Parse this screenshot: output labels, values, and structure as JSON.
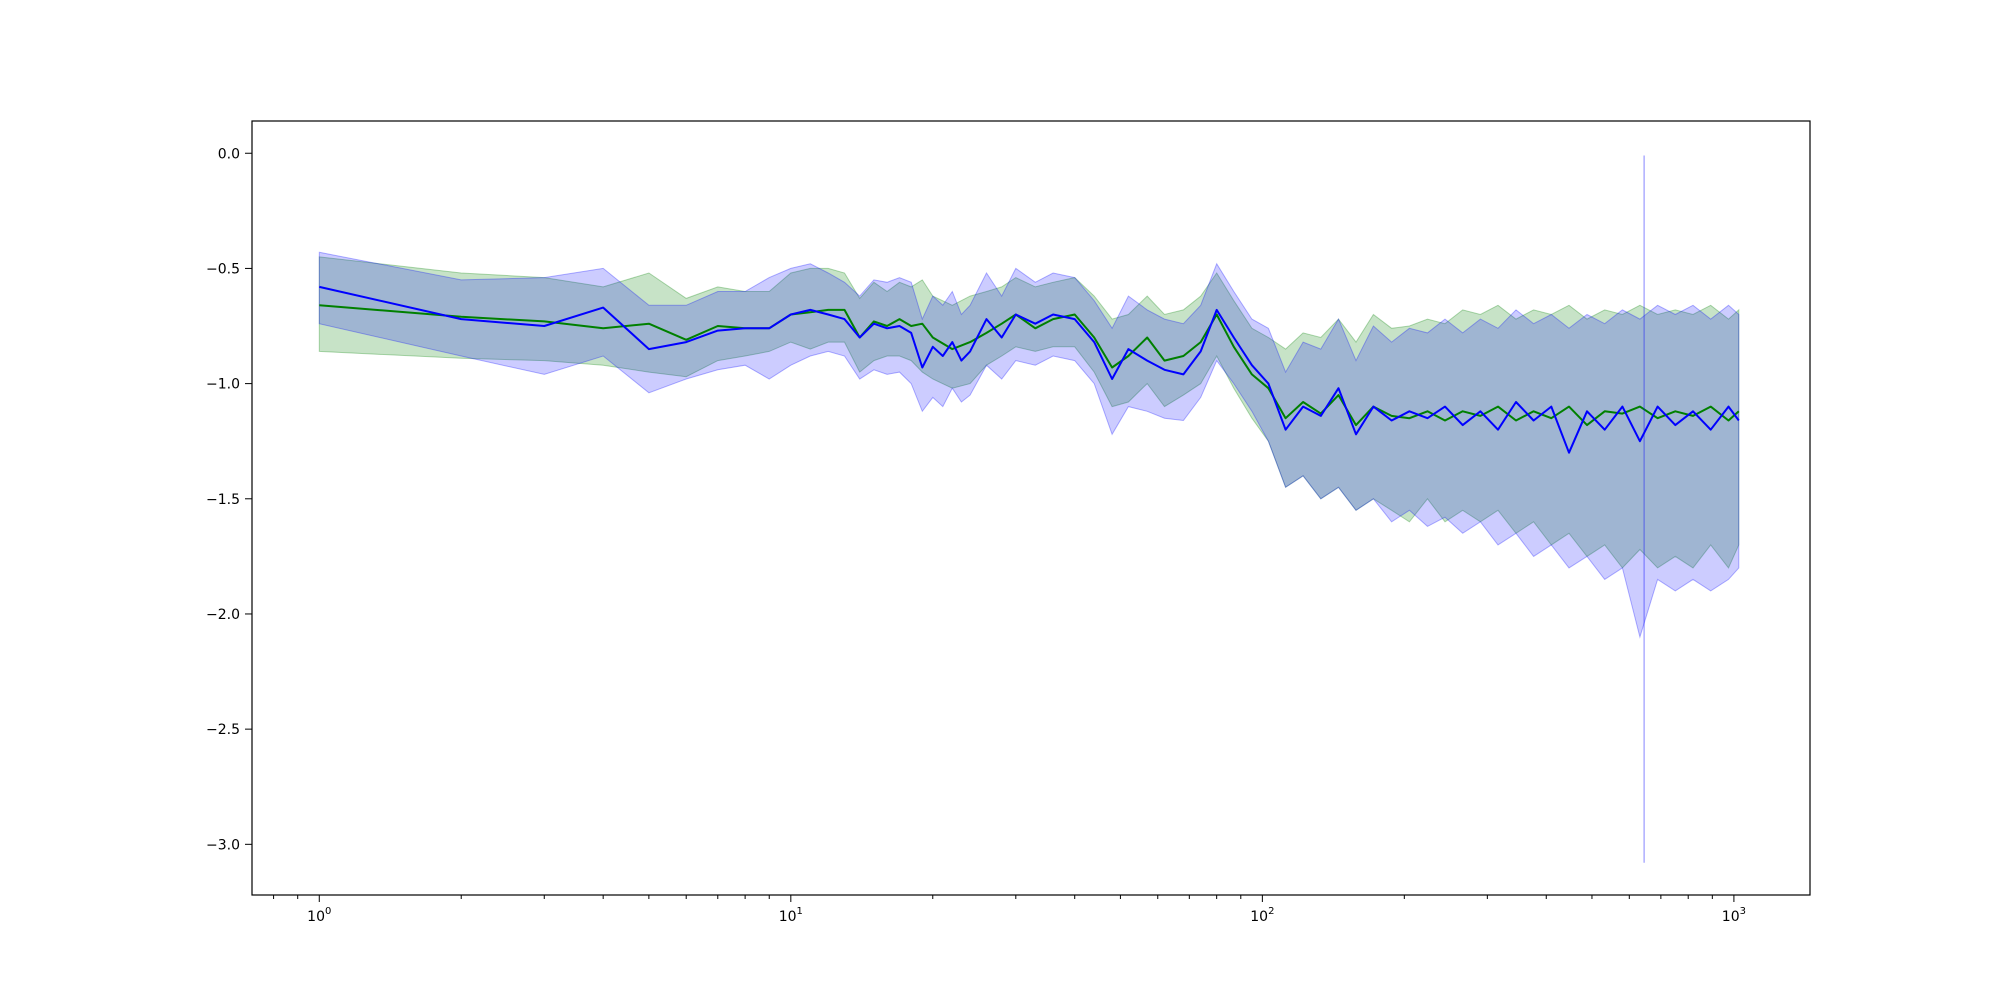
{
  "chart_data": {
    "type": "line",
    "title": "",
    "xlabel": "",
    "ylabel": "",
    "xscale": "log",
    "xlim": [
      0.72,
      1450
    ],
    "ylim": [
      -3.22,
      0.14
    ],
    "grid": false,
    "legend": "none",
    "x_tick_labels": [
      {
        "base": "10",
        "exp": "0",
        "value": 1
      },
      {
        "base": "10",
        "exp": "1",
        "value": 10
      },
      {
        "base": "10",
        "exp": "2",
        "value": 100
      },
      {
        "base": "10",
        "exp": "3",
        "value": 1000
      }
    ],
    "y_ticks": [
      0.0,
      -0.5,
      -1.0,
      -1.5,
      -2.0,
      -2.5,
      -3.0
    ],
    "y_tick_labels": [
      "0.0",
      "−0.5",
      "−1.0",
      "−1.5",
      "−2.0",
      "−2.5",
      "−3.0"
    ],
    "series": [
      {
        "color": "#008000",
        "band_color": "#008000",
        "band_opacity": 0.22,
        "x": [
          1,
          2,
          3,
          4,
          5,
          6,
          7,
          8,
          9,
          10,
          11,
          12,
          13,
          14,
          15,
          16,
          17,
          18,
          19,
          20,
          22,
          24,
          26,
          28,
          30,
          33,
          36,
          40,
          44,
          48,
          52,
          57,
          62,
          68,
          74,
          80,
          87,
          95,
          103,
          112,
          122,
          133,
          145,
          158,
          172,
          188,
          205,
          224,
          244,
          266,
          290,
          316,
          345,
          376,
          410,
          447,
          488,
          532,
          580,
          632,
          689,
          751,
          819,
          893,
          974,
          1024
        ],
        "y": [
          -0.66,
          -0.71,
          -0.73,
          -0.76,
          -0.74,
          -0.81,
          -0.75,
          -0.76,
          -0.76,
          -0.7,
          -0.69,
          -0.68,
          -0.68,
          -0.8,
          -0.73,
          -0.75,
          -0.72,
          -0.75,
          -0.74,
          -0.8,
          -0.85,
          -0.82,
          -0.78,
          -0.74,
          -0.7,
          -0.76,
          -0.72,
          -0.7,
          -0.8,
          -0.93,
          -0.88,
          -0.8,
          -0.9,
          -0.88,
          -0.82,
          -0.7,
          -0.84,
          -0.96,
          -1.02,
          -1.15,
          -1.08,
          -1.13,
          -1.05,
          -1.18,
          -1.1,
          -1.14,
          -1.15,
          -1.12,
          -1.16,
          -1.12,
          -1.14,
          -1.1,
          -1.16,
          -1.12,
          -1.15,
          -1.1,
          -1.18,
          -1.12,
          -1.13,
          -1.1,
          -1.15,
          -1.12,
          -1.14,
          -1.1,
          -1.16,
          -1.12
        ],
        "lower": [
          -0.86,
          -0.89,
          -0.9,
          -0.92,
          -0.95,
          -0.97,
          -0.9,
          -0.88,
          -0.86,
          -0.82,
          -0.85,
          -0.82,
          -0.82,
          -0.95,
          -0.9,
          -0.88,
          -0.88,
          -0.9,
          -0.95,
          -0.98,
          -1.02,
          -1.0,
          -0.92,
          -0.88,
          -0.84,
          -0.86,
          -0.84,
          -0.84,
          -0.95,
          -1.1,
          -1.08,
          -1.0,
          -1.1,
          -1.05,
          -1.0,
          -0.88,
          -1.02,
          -1.15,
          -1.25,
          -1.45,
          -1.4,
          -1.5,
          -1.45,
          -1.55,
          -1.5,
          -1.55,
          -1.6,
          -1.5,
          -1.6,
          -1.55,
          -1.6,
          -1.55,
          -1.65,
          -1.6,
          -1.7,
          -1.65,
          -1.75,
          -1.7,
          -1.8,
          -1.72,
          -1.8,
          -1.75,
          -1.8,
          -1.7,
          -1.8,
          -1.7
        ],
        "upper": [
          -0.45,
          -0.52,
          -0.54,
          -0.58,
          -0.52,
          -0.63,
          -0.58,
          -0.6,
          -0.6,
          -0.52,
          -0.5,
          -0.5,
          -0.52,
          -0.63,
          -0.56,
          -0.6,
          -0.56,
          -0.58,
          -0.55,
          -0.62,
          -0.66,
          -0.62,
          -0.6,
          -0.58,
          -0.54,
          -0.58,
          -0.56,
          -0.54,
          -0.62,
          -0.72,
          -0.7,
          -0.62,
          -0.7,
          -0.68,
          -0.62,
          -0.52,
          -0.64,
          -0.76,
          -0.8,
          -0.85,
          -0.78,
          -0.8,
          -0.72,
          -0.82,
          -0.7,
          -0.76,
          -0.75,
          -0.72,
          -0.74,
          -0.68,
          -0.7,
          -0.66,
          -0.72,
          -0.68,
          -0.7,
          -0.66,
          -0.72,
          -0.68,
          -0.7,
          -0.66,
          -0.7,
          -0.68,
          -0.7,
          -0.66,
          -0.72,
          -0.68
        ]
      },
      {
        "color": "#0000ff",
        "band_color": "#0000ff",
        "band_opacity": 0.2,
        "x": [
          1,
          2,
          3,
          4,
          5,
          6,
          7,
          8,
          9,
          10,
          11,
          12,
          13,
          14,
          15,
          16,
          17,
          18,
          19,
          20,
          21,
          22,
          23,
          24,
          26,
          28,
          30,
          33,
          36,
          40,
          44,
          48,
          52,
          57,
          62,
          68,
          74,
          80,
          87,
          95,
          103,
          112,
          122,
          133,
          145,
          158,
          172,
          188,
          205,
          224,
          244,
          266,
          290,
          316,
          345,
          376,
          410,
          447,
          488,
          532,
          580,
          632,
          689,
          751,
          819,
          893,
          974,
          1024
        ],
        "y": [
          -0.58,
          -0.72,
          -0.75,
          -0.67,
          -0.85,
          -0.82,
          -0.77,
          -0.76,
          -0.76,
          -0.7,
          -0.68,
          -0.7,
          -0.72,
          -0.8,
          -0.74,
          -0.76,
          -0.75,
          -0.78,
          -0.93,
          -0.84,
          -0.88,
          -0.82,
          -0.9,
          -0.86,
          -0.72,
          -0.8,
          -0.7,
          -0.74,
          -0.7,
          -0.72,
          -0.82,
          -0.98,
          -0.85,
          -0.9,
          -0.94,
          -0.96,
          -0.86,
          -0.68,
          -0.8,
          -0.92,
          -1.0,
          -1.2,
          -1.1,
          -1.14,
          -1.02,
          -1.22,
          -1.1,
          -1.16,
          -1.12,
          -1.15,
          -1.1,
          -1.18,
          -1.12,
          -1.2,
          -1.08,
          -1.16,
          -1.1,
          -1.3,
          -1.12,
          -1.2,
          -1.1,
          -1.25,
          -1.1,
          -1.18,
          -1.12,
          -1.2,
          -1.1,
          -1.16
        ],
        "lower": [
          -0.74,
          -0.88,
          -0.96,
          -0.88,
          -1.04,
          -0.98,
          -0.94,
          -0.92,
          -0.98,
          -0.92,
          -0.88,
          -0.86,
          -0.88,
          -0.98,
          -0.94,
          -0.96,
          -0.95,
          -1.0,
          -1.12,
          -1.06,
          -1.1,
          -1.02,
          -1.08,
          -1.05,
          -0.92,
          -0.98,
          -0.9,
          -0.92,
          -0.88,
          -0.9,
          -1.0,
          -1.22,
          -1.1,
          -1.12,
          -1.15,
          -1.16,
          -1.06,
          -0.9,
          -1.0,
          -1.12,
          -1.25,
          -1.45,
          -1.4,
          -1.5,
          -1.45,
          -1.55,
          -1.5,
          -1.6,
          -1.55,
          -1.62,
          -1.58,
          -1.65,
          -1.6,
          -1.7,
          -1.65,
          -1.75,
          -1.7,
          -1.8,
          -1.75,
          -1.85,
          -1.8,
          -2.1,
          -1.85,
          -1.9,
          -1.85,
          -1.9,
          -1.85,
          -1.8
        ],
        "upper": [
          -0.43,
          -0.55,
          -0.54,
          -0.5,
          -0.66,
          -0.66,
          -0.6,
          -0.6,
          -0.54,
          -0.5,
          -0.48,
          -0.52,
          -0.56,
          -0.62,
          -0.55,
          -0.56,
          -0.54,
          -0.56,
          -0.72,
          -0.62,
          -0.66,
          -0.6,
          -0.7,
          -0.66,
          -0.52,
          -0.62,
          -0.5,
          -0.56,
          -0.52,
          -0.54,
          -0.64,
          -0.76,
          -0.62,
          -0.68,
          -0.72,
          -0.74,
          -0.66,
          -0.48,
          -0.6,
          -0.72,
          -0.76,
          -0.95,
          -0.82,
          -0.85,
          -0.72,
          -0.9,
          -0.75,
          -0.82,
          -0.76,
          -0.78,
          -0.72,
          -0.78,
          -0.72,
          -0.76,
          -0.68,
          -0.74,
          -0.7,
          -0.76,
          -0.7,
          -0.74,
          -0.68,
          -0.72,
          -0.66,
          -0.7,
          -0.66,
          -0.72,
          -0.66,
          -0.7
        ]
      }
    ],
    "annotations": [
      {
        "type": "vertical-spike",
        "x": 645,
        "y_top": -0.01,
        "y_bottom": -3.08,
        "color": "#0000ff"
      }
    ]
  }
}
